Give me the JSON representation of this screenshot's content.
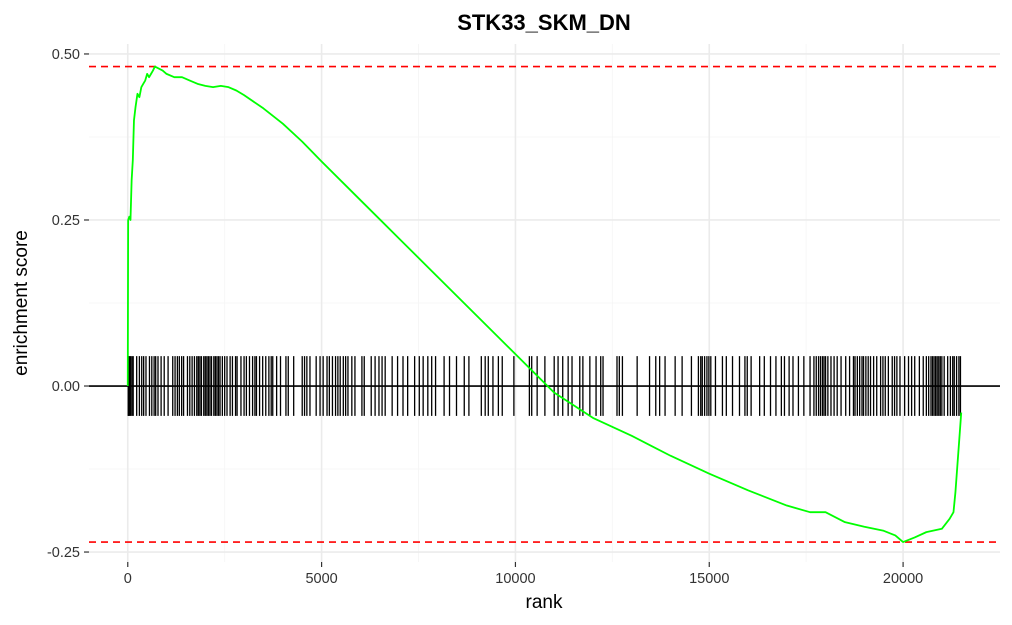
{
  "chart_data": {
    "type": "line",
    "title": "STK33_SKM_DN",
    "xlabel": "rank",
    "ylabel": "enrichment score",
    "xlim": [
      -1000,
      22500
    ],
    "ylim": [
      -0.265,
      0.515
    ],
    "x_ticks": [
      0,
      5000,
      10000,
      15000,
      20000
    ],
    "x_tick_labels": [
      "0",
      "5000",
      "10000",
      "15000",
      "20000"
    ],
    "y_ticks": [
      -0.25,
      0,
      0.25,
      0.5
    ],
    "y_tick_labels": [
      "-0.25",
      "0.00",
      "0.25",
      "0.50"
    ],
    "grid": true,
    "colors": {
      "curve": "#00ff00",
      "limits": "#ff0000",
      "hits": "#000000",
      "zero_line": "#000000"
    },
    "limit_lines": [
      0.481,
      -0.235
    ],
    "hit_band": [
      -0.045,
      0.045
    ],
    "series": [
      {
        "x": [
          0,
          10,
          40,
          70,
          100,
          130,
          160,
          200,
          250,
          300,
          350,
          400,
          450,
          500,
          550,
          600,
          650,
          700,
          800,
          900,
          1000,
          1200,
          1400,
          1600,
          1800,
          2000,
          2200,
          2400,
          2600,
          2800,
          3000,
          3500,
          4000,
          4500,
          5000,
          6000,
          7000,
          8000,
          9000,
          10000,
          11000,
          12000,
          13000,
          13500,
          14000,
          15000,
          16000,
          17000,
          17600,
          18000,
          18500,
          19000,
          19500,
          19800,
          20000,
          20300,
          20600,
          21000,
          21200,
          21300,
          21350,
          21400,
          21450,
          21500
        ],
        "y": [
          0.0,
          0.25,
          0.255,
          0.25,
          0.31,
          0.34,
          0.4,
          0.42,
          0.44,
          0.435,
          0.45,
          0.455,
          0.46,
          0.47,
          0.465,
          0.47,
          0.475,
          0.481,
          0.478,
          0.475,
          0.47,
          0.465,
          0.465,
          0.46,
          0.455,
          0.452,
          0.45,
          0.452,
          0.45,
          0.445,
          0.438,
          0.418,
          0.395,
          0.368,
          0.338,
          0.28,
          0.222,
          0.164,
          0.106,
          0.048,
          -0.01,
          -0.048,
          -0.075,
          -0.09,
          -0.105,
          -0.132,
          -0.157,
          -0.18,
          -0.19,
          -0.19,
          -0.205,
          -0.212,
          -0.218,
          -0.225,
          -0.235,
          -0.228,
          -0.22,
          -0.215,
          -0.2,
          -0.19,
          -0.16,
          -0.12,
          -0.08,
          -0.04
        ]
      }
    ],
    "hits": [
      12,
      22,
      45,
      70,
      105,
      140,
      230,
      300,
      360,
      410,
      470,
      560,
      620,
      680,
      720,
      780,
      860,
      940,
      1040,
      1160,
      1220,
      1280,
      1330,
      1390,
      1440,
      1540,
      1600,
      1660,
      1720,
      1780,
      1820,
      1860,
      1900,
      1960,
      2000,
      2040,
      2080,
      2120,
      2160,
      2220,
      2260,
      2300,
      2340,
      2380,
      2440,
      2500,
      2560,
      2640,
      2700,
      2780,
      2820,
      2920,
      3000,
      3060,
      3140,
      3220,
      3280,
      3320,
      3400,
      3480,
      3560,
      3640,
      3700,
      3740,
      3840,
      3940,
      4080,
      4140,
      4280,
      4500,
      4560,
      4620,
      4700,
      4860,
      4960,
      5040,
      5140,
      5200,
      5280,
      5360,
      5420,
      5480,
      5560,
      5620,
      5680,
      5780,
      5860,
      6040,
      6100,
      6280,
      6380,
      6480,
      6560,
      6640,
      6820,
      6960,
      7100,
      7220,
      7400,
      7520,
      7620,
      7740,
      7840,
      7940,
      8160,
      8300,
      8480,
      8680,
      8800,
      9120,
      9220,
      9300,
      9420,
      9560,
      9660,
      9960,
      10360,
      10420,
      10560,
      10760,
      11000,
      11100,
      11220,
      11360,
      11460,
      11660,
      11740,
      11920,
      12080,
      12200,
      12260,
      12620,
      12680,
      12760,
      13140,
      13460,
      13620,
      13720,
      13860,
      14120,
      14300,
      14540,
      14720,
      14780,
      14820,
      14880,
      14940,
      14990,
      15040,
      15160,
      15340,
      15440,
      15600,
      15780,
      15920,
      15980,
      16080,
      16300,
      16420,
      16580,
      16720,
      16860,
      16940,
      17060,
      17160,
      17300,
      17440,
      17600,
      17700,
      17760,
      17820,
      17870,
      17920,
      17960,
      18000,
      18060,
      18140,
      18220,
      18300,
      18400,
      18520,
      18620,
      18720,
      18760,
      18820,
      18880,
      18940,
      18980,
      19040,
      19100,
      19160,
      19240,
      19320,
      19420,
      19480,
      19540,
      19620,
      19720,
      19780,
      19840,
      19920,
      20040,
      20140,
      20220,
      20300,
      20420,
      20520,
      20600,
      20660,
      20720,
      20760,
      20800,
      20840,
      20880,
      20920,
      20960,
      21000,
      21060,
      21150,
      21220,
      21280,
      21320,
      21380,
      21440,
      21480
    ]
  }
}
